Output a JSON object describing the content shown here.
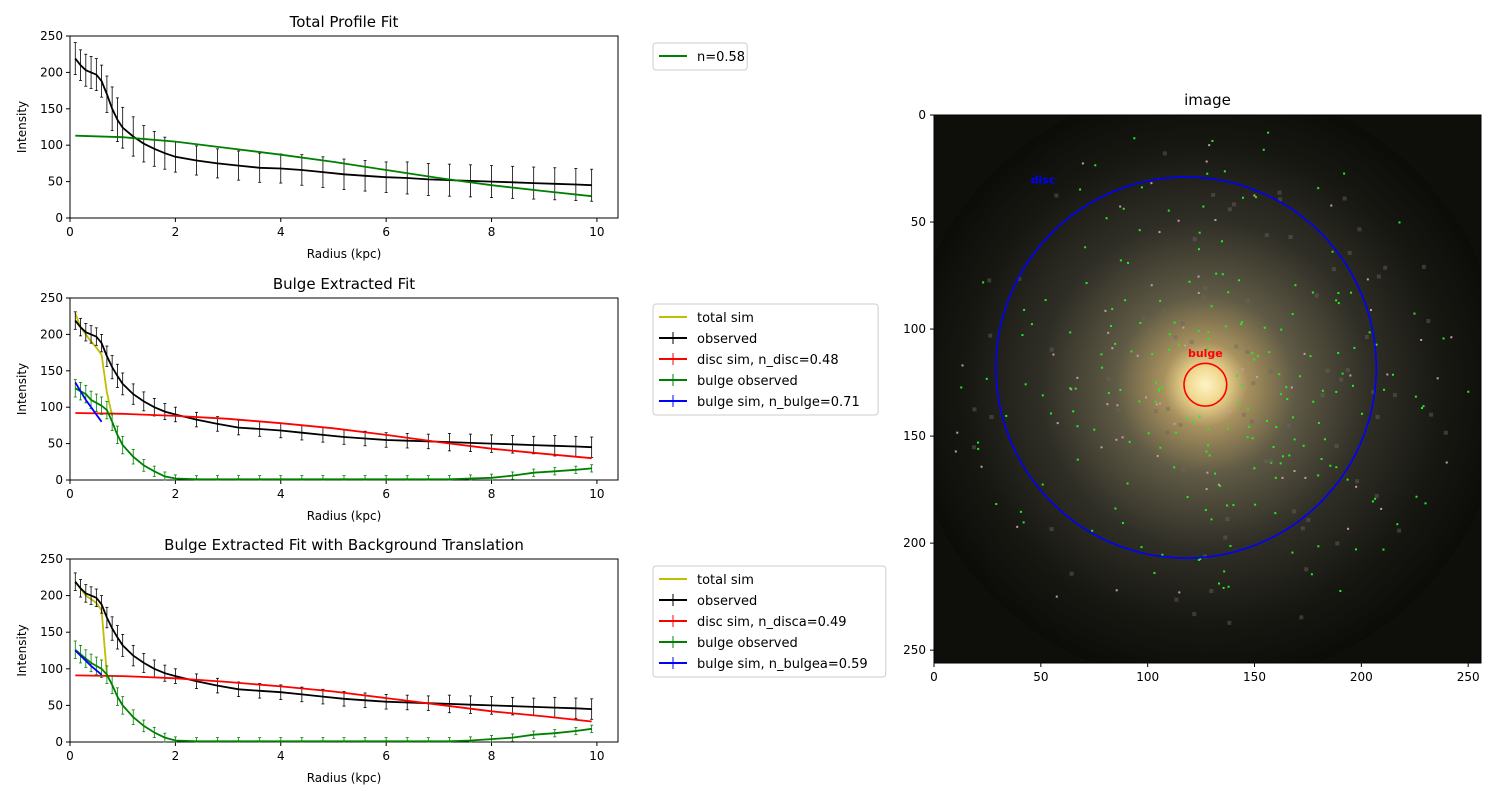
{
  "chart_data": [
    {
      "type": "line",
      "title": "Total Profile Fit",
      "xlabel": "Radius (kpc)",
      "ylabel": "Intensity",
      "xlim": [
        0,
        10.4
      ],
      "ylim": [
        0,
        250
      ],
      "xticks": [
        "0",
        "2",
        "4",
        "6",
        "8",
        "10"
      ],
      "yticks": [
        "0",
        "50",
        "100",
        "150",
        "200",
        "250"
      ],
      "grid": false,
      "legend_position": "outside-right-top",
      "series": [
        {
          "name": "",
          "color": "#000000",
          "errorbars": true,
          "x": [
            0.1,
            0.2,
            0.3,
            0.4,
            0.5,
            0.6,
            0.7,
            0.8,
            0.9,
            1.0,
            1.2,
            1.4,
            1.6,
            1.8,
            2.0,
            2.4,
            2.8,
            3.2,
            3.6,
            4.0,
            4.4,
            4.8,
            5.2,
            5.6,
            6.0,
            6.4,
            6.8,
            7.2,
            7.6,
            8.0,
            8.4,
            8.8,
            9.2,
            9.6,
            9.9
          ],
          "y": [
            219,
            210,
            203,
            200,
            197,
            188,
            170,
            150,
            135,
            124,
            112,
            102,
            95,
            89,
            84,
            79,
            75,
            72,
            69,
            68,
            66,
            63,
            60,
            58,
            56,
            55,
            53,
            52,
            51,
            50,
            49,
            48,
            47,
            46,
            45
          ],
          "err": [
            22,
            21,
            22,
            22,
            22,
            22,
            25,
            30,
            30,
            28,
            27,
            25,
            24,
            22,
            21,
            20,
            20,
            20,
            20,
            20,
            21,
            21,
            21,
            21,
            21,
            22,
            22,
            22,
            22,
            22,
            22,
            22,
            22,
            22,
            22
          ]
        },
        {
          "name": "n=0.58",
          "color": "#008000",
          "errorbars": false,
          "x": [
            0.1,
            1.0,
            2.0,
            3.0,
            4.0,
            5.0,
            6.0,
            7.0,
            8.0,
            9.0,
            9.9
          ],
          "y": [
            113,
            111,
            105,
            96,
            87,
            77,
            66,
            55,
            45,
            37,
            30
          ]
        }
      ]
    },
    {
      "type": "line",
      "title": "Bulge Extracted Fit",
      "xlabel": "Radius (kpc)",
      "ylabel": "Intensity",
      "xlim": [
        0,
        10.4
      ],
      "ylim": [
        0,
        250
      ],
      "xticks": [
        "0",
        "2",
        "4",
        "6",
        "8",
        "10"
      ],
      "yticks": [
        "0",
        "50",
        "100",
        "150",
        "200",
        "250"
      ],
      "grid": false,
      "legend_position": "outside-right",
      "series": [
        {
          "name": "total sim",
          "color": "#bfbf00",
          "errorbars": false,
          "x": [
            0.1,
            0.2,
            0.3,
            0.4,
            0.5,
            0.6,
            0.7,
            0.8
          ],
          "y": [
            229,
            210,
            200,
            190,
            182,
            172,
            120,
            88
          ]
        },
        {
          "name": "observed",
          "color": "#000000",
          "errorbars": true,
          "x": [
            0.1,
            0.2,
            0.3,
            0.4,
            0.5,
            0.6,
            0.7,
            0.8,
            0.9,
            1.0,
            1.2,
            1.4,
            1.6,
            1.8,
            2.0,
            2.4,
            2.8,
            3.2,
            3.6,
            4.0,
            4.4,
            4.8,
            5.2,
            5.6,
            6.0,
            6.4,
            6.8,
            7.2,
            7.6,
            8.0,
            8.4,
            8.8,
            9.2,
            9.6,
            9.9
          ],
          "y": [
            219,
            210,
            203,
            200,
            197,
            188,
            170,
            155,
            143,
            132,
            118,
            108,
            100,
            94,
            90,
            83,
            77,
            72,
            70,
            68,
            65,
            62,
            59,
            57,
            55,
            54,
            53,
            52,
            51,
            50,
            49,
            48,
            47,
            46,
            45
          ],
          "err": [
            12,
            12,
            12,
            12,
            12,
            12,
            14,
            16,
            16,
            15,
            14,
            13,
            12,
            11,
            10,
            10,
            10,
            10,
            10,
            10,
            10,
            10,
            10,
            10,
            10,
            10,
            10,
            12,
            12,
            12,
            12,
            12,
            14,
            14,
            14
          ]
        },
        {
          "name": "disc sim, n_disc=0.48",
          "color": "#ff0000",
          "errorbars": true,
          "x": [
            0.1,
            1.0,
            2.0,
            3.0,
            4.0,
            5.0,
            6.0,
            7.0,
            8.0,
            9.0,
            9.9
          ],
          "y": [
            92,
            91,
            88,
            84,
            78,
            71,
            62,
            52,
            43,
            36,
            30
          ]
        },
        {
          "name": "bulge observed",
          "color": "#008000",
          "errorbars": true,
          "x": [
            0.1,
            0.2,
            0.3,
            0.4,
            0.5,
            0.6,
            0.7,
            0.8,
            0.9,
            1.0,
            1.2,
            1.4,
            1.6,
            1.8,
            2.0,
            2.4,
            2.8,
            3.2,
            3.6,
            4.0,
            4.4,
            4.8,
            5.2,
            5.6,
            6.0,
            6.4,
            6.8,
            7.2,
            7.6,
            8.0,
            8.4,
            8.8,
            9.2,
            9.6,
            9.9
          ],
          "y": [
            126,
            122,
            118,
            110,
            106,
            102,
            96,
            80,
            62,
            48,
            32,
            20,
            12,
            5,
            2,
            1,
            1,
            1,
            1,
            1,
            1,
            1,
            1,
            1,
            1,
            1,
            1,
            1,
            2,
            3,
            6,
            10,
            12,
            14,
            16
          ],
          "err": [
            12,
            12,
            12,
            12,
            12,
            12,
            12,
            12,
            12,
            12,
            10,
            8,
            7,
            6,
            5,
            5,
            5,
            5,
            5,
            5,
            5,
            5,
            5,
            5,
            5,
            5,
            5,
            5,
            5,
            5,
            5,
            5,
            5,
            5,
            5
          ]
        },
        {
          "name": "bulge sim, n_bulge=0.71",
          "color": "#0000ff",
          "errorbars": true,
          "x": [
            0.1,
            0.2,
            0.3,
            0.4,
            0.5,
            0.6
          ],
          "y": [
            134,
            122,
            110,
            100,
            90,
            80
          ]
        }
      ]
    },
    {
      "type": "line",
      "title": "Bulge Extracted Fit with Background Translation",
      "xlabel": "Radius (kpc)",
      "ylabel": "Intensity",
      "xlim": [
        0,
        10.4
      ],
      "ylim": [
        0,
        250
      ],
      "xticks": [
        "0",
        "2",
        "4",
        "6",
        "8",
        "10"
      ],
      "yticks": [
        "0",
        "50",
        "100",
        "150",
        "200",
        "250"
      ],
      "grid": false,
      "legend_position": "outside-right",
      "series": [
        {
          "name": "total sim",
          "color": "#bfbf00",
          "errorbars": false,
          "x": [
            0.1,
            0.2,
            0.3,
            0.4,
            0.5,
            0.6,
            0.7
          ],
          "y": [
            218,
            210,
            200,
            195,
            190,
            180,
            92
          ]
        },
        {
          "name": "observed",
          "color": "#000000",
          "errorbars": true,
          "x": [
            0.1,
            0.2,
            0.3,
            0.4,
            0.5,
            0.6,
            0.7,
            0.8,
            0.9,
            1.0,
            1.2,
            1.4,
            1.6,
            1.8,
            2.0,
            2.4,
            2.8,
            3.2,
            3.6,
            4.0,
            4.4,
            4.8,
            5.2,
            5.6,
            6.0,
            6.4,
            6.8,
            7.2,
            7.6,
            8.0,
            8.4,
            8.8,
            9.2,
            9.6,
            9.9
          ],
          "y": [
            219,
            210,
            203,
            200,
            197,
            188,
            170,
            155,
            143,
            132,
            118,
            108,
            100,
            94,
            90,
            83,
            77,
            72,
            70,
            68,
            65,
            62,
            59,
            57,
            55,
            54,
            53,
            52,
            51,
            50,
            49,
            48,
            47,
            46,
            45
          ],
          "err": [
            12,
            12,
            12,
            12,
            12,
            12,
            14,
            16,
            16,
            15,
            14,
            13,
            12,
            11,
            10,
            10,
            10,
            10,
            10,
            10,
            10,
            10,
            10,
            10,
            10,
            10,
            10,
            12,
            12,
            12,
            12,
            12,
            14,
            14,
            14
          ]
        },
        {
          "name": "disc sim, n_disca=0.49",
          "color": "#ff0000",
          "errorbars": true,
          "x": [
            0.1,
            1.0,
            2.0,
            3.0,
            4.0,
            5.0,
            6.0,
            7.0,
            8.0,
            9.0,
            9.9
          ],
          "y": [
            91,
            90,
            87,
            82,
            76,
            69,
            60,
            51,
            42,
            35,
            28
          ]
        },
        {
          "name": "bulge observed",
          "color": "#008000",
          "errorbars": true,
          "x": [
            0.1,
            0.2,
            0.3,
            0.4,
            0.5,
            0.6,
            0.7,
            0.8,
            0.9,
            1.0,
            1.2,
            1.4,
            1.6,
            1.8,
            2.0,
            2.4,
            2.8,
            3.2,
            3.6,
            4.0,
            4.4,
            4.8,
            5.2,
            5.6,
            6.0,
            6.4,
            6.8,
            7.2,
            7.6,
            8.0,
            8.4,
            8.8,
            9.2,
            9.6,
            9.9
          ],
          "y": [
            126,
            120,
            114,
            108,
            104,
            100,
            92,
            78,
            62,
            50,
            34,
            22,
            13,
            6,
            2,
            1,
            1,
            1,
            1,
            1,
            1,
            1,
            1,
            1,
            1,
            1,
            1,
            1,
            2,
            4,
            6,
            10,
            12,
            15,
            18
          ],
          "err": [
            12,
            12,
            12,
            12,
            12,
            12,
            12,
            12,
            12,
            12,
            10,
            8,
            7,
            6,
            5,
            5,
            5,
            5,
            5,
            5,
            5,
            5,
            5,
            5,
            5,
            5,
            5,
            5,
            5,
            5,
            5,
            5,
            5,
            5,
            5
          ]
        },
        {
          "name": "bulge sim, n_bulgea=0.59",
          "color": "#0000ff",
          "errorbars": true,
          "x": [
            0.1,
            0.2,
            0.3,
            0.4,
            0.5,
            0.6
          ],
          "y": [
            125,
            118,
            111,
            104,
            98,
            92
          ]
        }
      ]
    },
    {
      "type": "heatmap",
      "title": "image",
      "xlim": [
        0,
        256
      ],
      "ylim": [
        256,
        0
      ],
      "xticks": [
        "0",
        "50",
        "100",
        "150",
        "200",
        "250"
      ],
      "yticks": [
        "0",
        "50",
        "100",
        "150",
        "200",
        "250"
      ],
      "annotations": [
        {
          "text": "bulge",
          "color": "#ff0000",
          "x": 127,
          "y": 113
        },
        {
          "text": "disc",
          "color": "#0000ff",
          "x": 51,
          "y": 32
        }
      ],
      "circles": [
        {
          "label": "bulge",
          "color": "#ff0000",
          "cx": 127,
          "cy": 126,
          "r": 10
        },
        {
          "label": "disc",
          "color": "#0000ff",
          "cx": 118,
          "cy": 118,
          "r": 89
        }
      ]
    }
  ]
}
